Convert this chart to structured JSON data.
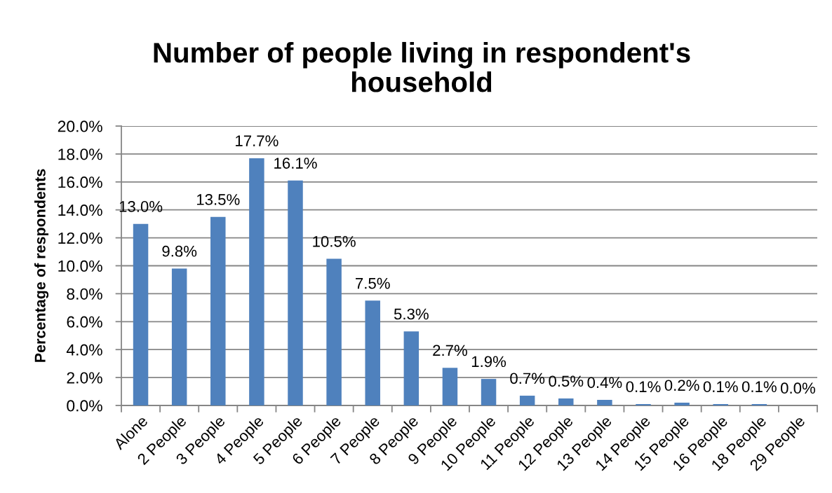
{
  "chart_data": {
    "type": "bar",
    "title": "Number of people living in respondent's household",
    "ylabel": "Percentage of respondents",
    "categories": [
      "Alone",
      "2 People",
      "3 People",
      "4 People",
      "5 People",
      "6 People",
      "7 People",
      "8 People",
      "9 People",
      "10 People",
      "11 People",
      "12 People",
      "13 People",
      "14 People",
      "15 People",
      "16 People",
      "18 People",
      "29 People"
    ],
    "values": [
      13.0,
      9.8,
      13.5,
      17.7,
      16.1,
      10.5,
      7.5,
      5.3,
      2.7,
      1.9,
      0.7,
      0.5,
      0.4,
      0.1,
      0.2,
      0.1,
      0.1,
      0.0
    ],
    "value_labels": [
      "13.0%",
      "9.8%",
      "13.5%",
      "17.7%",
      "16.1%",
      "10.5%",
      "7.5%",
      "5.3%",
      "2.7%",
      "1.9%",
      "0.7%",
      "0.5%",
      "0.4%",
      "0.1%",
      "0.2%",
      "0.1%",
      "0.1%",
      "0.0%"
    ],
    "color": "#4f81bd",
    "ylim": [
      0,
      20
    ],
    "yticks": [
      {
        "value": 0,
        "label": "0.0%"
      },
      {
        "value": 2,
        "label": "2.0%"
      },
      {
        "value": 4,
        "label": "4.0%"
      },
      {
        "value": 6,
        "label": "6.0%"
      },
      {
        "value": 8,
        "label": "8.0%"
      },
      {
        "value": 10,
        "label": "10.0%"
      },
      {
        "value": 12,
        "label": "12.0%"
      },
      {
        "value": 14,
        "label": "14.0%"
      },
      {
        "value": 16,
        "label": "16.0%"
      },
      {
        "value": 18,
        "label": "18.0%"
      },
      {
        "value": 20,
        "label": "20.0%"
      }
    ],
    "grid": "y"
  }
}
